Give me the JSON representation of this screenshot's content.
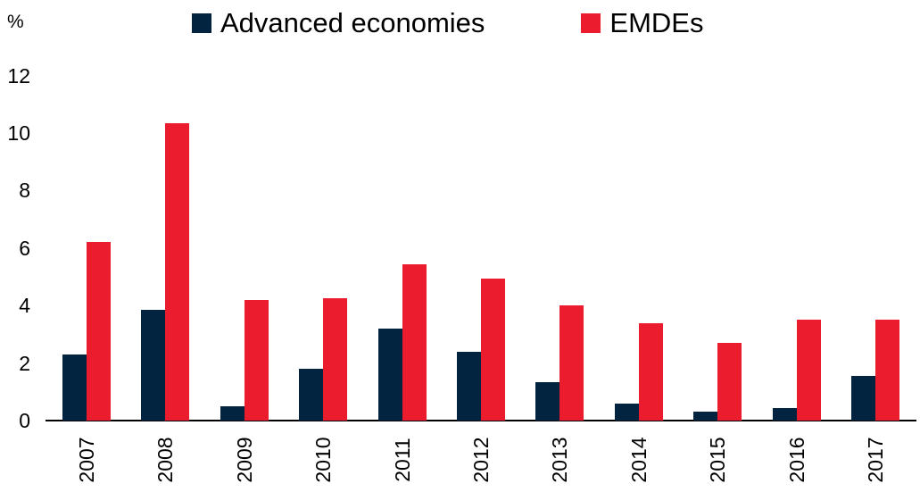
{
  "chart_data": {
    "type": "bar",
    "title": "",
    "ylabel": "%",
    "xlabel": "",
    "categories": [
      "2007",
      "2008",
      "2009",
      "2010",
      "2011",
      "2012",
      "2013",
      "2014",
      "2015",
      "2016",
      "2017"
    ],
    "series": [
      {
        "name": "Advanced economies",
        "color": "#032440",
        "values": [
          2.3,
          3.85,
          0.5,
          1.8,
          3.2,
          2.4,
          1.35,
          0.6,
          0.3,
          0.45,
          1.55
        ]
      },
      {
        "name": "EMDEs",
        "color": "#EA1C2D",
        "values": [
          6.2,
          10.35,
          4.2,
          4.25,
          5.45,
          4.95,
          4.0,
          3.4,
          2.7,
          3.5,
          3.5
        ]
      }
    ],
    "ylim": [
      0,
      12
    ],
    "yticks": [
      0,
      2,
      4,
      6,
      8,
      10,
      12
    ],
    "grid": false,
    "legend_position": "top",
    "x_tick_rotation": -90
  }
}
